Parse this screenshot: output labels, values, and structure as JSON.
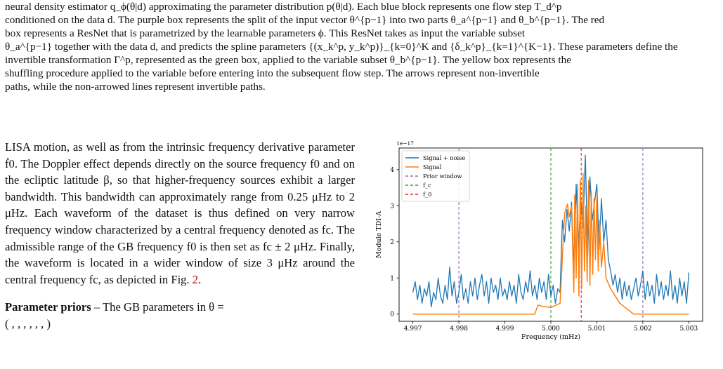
{
  "caption_lines": [
    "neural density estimator q_ϕ(θ|d) approximating the parameter distribution p(θ|d). Each blue block represents one flow step T_d^p",
    "conditioned on the data d. The purple box represents the split of the input vector θ^{p−1} into two parts θ_a^{p−1} and θ_b^{p−1}. The red",
    "box represents a ResNet that is parametrized by the learnable parameters ϕ. This ResNet takes as input the variable subset",
    "θ_a^{p−1} together with the data d, and predicts the spline parameters {(x_k^p, y_k^p)}_{k=0}^K and {δ_k^p}_{k=1}^{K−1}. These parameters define the",
    "invertible transformation Γ^p, represented as the green box, applied to the variable subset θ_b^{p−1}. The yellow box represents the",
    "shuffling procedure applied to the variable before entering into the subsequent flow step. The arrows represent non-invertible",
    "paths, while the non-arrowed lines represent invertible paths."
  ],
  "body": {
    "paragraph1": "LISA motion, as well as from the intrinsic frequency derivative parameter ḟ0. The Doppler effect depends directly on the source frequency f0 and on the ecliptic latitude β, so that higher-frequency sources exhibit a larger bandwidth. This bandwidth can approximately range from 0.25 μHz to 2 μHz. Each waveform of the dataset is thus defined on very narrow frequency window characterized by a central frequency denoted as fc. The admissible range of the GB frequency f0 is then set as fc ± 2 μHz. Finally, the waveform is located in a wider window of size 3 μHz around the central frequency fc, as depicted in Fig.",
    "fig_ref": "2",
    "paragraph1_end": ".",
    "paragraph2_bold": "Parameter priors",
    "paragraph2_text": " – The GB parameters in θ =",
    "paragraph2_cont": "( , , , , , , )"
  },
  "chart_data": {
    "type": "line",
    "xlabel": "Frequency (mHz)",
    "ylabel": "Module TDI-A",
    "scale_label": "1e−17",
    "xlim": [
      4.9967,
      5.0033
    ],
    "ylim": [
      -0.2,
      4.6
    ],
    "xticks": [
      "4.997",
      "4.998",
      "4.999",
      "5.000",
      "5.001",
      "5.002",
      "5.003"
    ],
    "xtick_values": [
      4.997,
      4.998,
      4.999,
      5.0,
      5.001,
      5.002,
      5.003
    ],
    "yticks": [
      "0",
      "1",
      "2",
      "3",
      "4"
    ],
    "ytick_values": [
      0,
      1,
      2,
      3,
      4
    ],
    "legend": [
      "Signal + noise",
      "Signal",
      "Prior window",
      "f_c",
      "f_0"
    ],
    "colors": {
      "noise": "#1f77b4",
      "signal": "#ff7f0e",
      "prior": "#9467bd",
      "fc": "#2ca02c",
      "f0": "#d62728"
    },
    "vlines": {
      "prior": [
        4.998,
        5.002
      ],
      "fc": 5.0,
      "f0": 5.00066
    },
    "signal_xy": [
      [
        4.997,
        0.0
      ],
      [
        4.99965,
        0.0
      ],
      [
        4.99972,
        0.25
      ],
      [
        4.9998,
        0.22
      ],
      [
        4.9999,
        0.2
      ],
      [
        5.0,
        0.18
      ],
      [
        5.0002,
        0.3
      ],
      [
        5.0003,
        2.8
      ],
      [
        5.00036,
        3.05
      ],
      [
        5.0004,
        2.7
      ],
      [
        5.00045,
        3.0
      ],
      [
        5.0005,
        0.6
      ],
      [
        5.00052,
        3.3
      ],
      [
        5.00055,
        1.0
      ],
      [
        5.00058,
        3.6
      ],
      [
        5.00061,
        0.5
      ],
      [
        5.00064,
        3.7
      ],
      [
        5.00067,
        0.7
      ],
      [
        5.0007,
        3.9
      ],
      [
        5.00073,
        1.2
      ],
      [
        5.00076,
        3.0
      ],
      [
        5.00079,
        0.9
      ],
      [
        5.00082,
        3.7
      ],
      [
        5.00085,
        0.8
      ],
      [
        5.00088,
        3.4
      ],
      [
        5.00091,
        1.1
      ],
      [
        5.00094,
        3.2
      ],
      [
        5.00097,
        1.5
      ],
      [
        5.001,
        3.3
      ],
      [
        5.00103,
        1.2
      ],
      [
        5.00106,
        2.6
      ],
      [
        5.0011,
        1.3
      ],
      [
        5.00115,
        2.0
      ],
      [
        5.0012,
        1.0
      ],
      [
        5.0013,
        0.7
      ],
      [
        5.0015,
        0.3
      ],
      [
        5.0017,
        0.1
      ],
      [
        5.0018,
        0.0
      ],
      [
        5.003,
        0.0
      ]
    ],
    "noise_xy": [
      [
        4.997,
        0.6
      ],
      [
        4.99705,
        0.9
      ],
      [
        4.9971,
        0.4
      ],
      [
        4.99715,
        0.8
      ],
      [
        4.9972,
        0.3
      ],
      [
        4.99725,
        0.7
      ],
      [
        4.9973,
        0.5
      ],
      [
        4.99735,
        0.9
      ],
      [
        4.9974,
        0.2
      ],
      [
        4.99745,
        0.6
      ],
      [
        4.9975,
        0.4
      ],
      [
        4.99755,
        1.0
      ],
      [
        4.9976,
        0.5
      ],
      [
        4.99765,
        0.3
      ],
      [
        4.9977,
        0.8
      ],
      [
        4.99775,
        0.4
      ],
      [
        4.9978,
        1.3
      ],
      [
        4.99785,
        0.5
      ],
      [
        4.9979,
        0.9
      ],
      [
        4.99795,
        0.3
      ],
      [
        4.998,
        0.6
      ],
      [
        4.99805,
        1.1
      ],
      [
        4.9981,
        0.4
      ],
      [
        4.99815,
        0.7
      ],
      [
        4.9982,
        0.3
      ],
      [
        4.99825,
        0.9
      ],
      [
        4.9983,
        0.5
      ],
      [
        4.99835,
        1.0
      ],
      [
        4.9984,
        0.4
      ],
      [
        4.99845,
        0.8
      ],
      [
        4.9985,
        1.1
      ],
      [
        4.99855,
        0.5
      ],
      [
        4.9986,
        0.9
      ],
      [
        4.99865,
        0.3
      ],
      [
        4.9987,
        1.0
      ],
      [
        4.99875,
        0.6
      ],
      [
        4.9988,
        0.8
      ],
      [
        4.99885,
        0.4
      ],
      [
        4.9989,
        1.0
      ],
      [
        4.99895,
        0.5
      ],
      [
        4.999,
        0.7
      ],
      [
        4.99905,
        0.4
      ],
      [
        4.9991,
        0.9
      ],
      [
        4.99915,
        0.5
      ],
      [
        4.9992,
        0.8
      ],
      [
        4.99925,
        0.3
      ],
      [
        4.9993,
        1.1
      ],
      [
        4.99935,
        0.6
      ],
      [
        4.9994,
        0.4
      ],
      [
        4.99945,
        0.9
      ],
      [
        4.9995,
        0.6
      ],
      [
        4.99955,
        1.2
      ],
      [
        4.9996,
        0.5
      ],
      [
        4.99965,
        0.8
      ],
      [
        4.9997,
        0.4
      ],
      [
        4.99975,
        1.0
      ],
      [
        4.9998,
        0.6
      ],
      [
        4.99985,
        0.9
      ],
      [
        4.9999,
        0.4
      ],
      [
        4.99995,
        1.1
      ],
      [
        5.0,
        0.5
      ],
      [
        5.00005,
        0.8
      ],
      [
        5.0001,
        0.3
      ],
      [
        5.00015,
        0.7
      ],
      [
        5.0002,
        0.6
      ],
      [
        5.00025,
        2.6
      ],
      [
        5.0003,
        2.0
      ],
      [
        5.00035,
        2.9
      ],
      [
        5.0004,
        2.3
      ],
      [
        5.00045,
        3.1
      ],
      [
        5.0005,
        1.2
      ],
      [
        5.00055,
        3.6
      ],
      [
        5.0006,
        1.8
      ],
      [
        5.00065,
        3.2
      ],
      [
        5.0007,
        2.4
      ],
      [
        5.00075,
        4.4
      ],
      [
        5.0008,
        1.6
      ],
      [
        5.00085,
        3.8
      ],
      [
        5.0009,
        2.6
      ],
      [
        5.00095,
        3.1
      ],
      [
        5.001,
        3.6
      ],
      [
        5.00105,
        1.8
      ],
      [
        5.0011,
        3.2
      ],
      [
        5.00115,
        2.0
      ],
      [
        5.0012,
        2.6
      ],
      [
        5.00125,
        1.5
      ],
      [
        5.0013,
        1.2
      ],
      [
        5.00135,
        0.8
      ],
      [
        5.0014,
        1.1
      ],
      [
        5.00145,
        0.6
      ],
      [
        5.0015,
        1.0
      ],
      [
        5.00155,
        0.4
      ],
      [
        5.0016,
        0.9
      ],
      [
        5.00165,
        0.5
      ],
      [
        5.0017,
        0.8
      ],
      [
        5.00175,
        0.4
      ],
      [
        5.0018,
        0.7
      ],
      [
        5.00185,
        1.0
      ],
      [
        5.0019,
        0.5
      ],
      [
        5.00195,
        0.8
      ],
      [
        5.002,
        1.2
      ],
      [
        5.00205,
        0.4
      ],
      [
        5.0021,
        0.9
      ],
      [
        5.00215,
        0.5
      ],
      [
        5.0022,
        0.8
      ],
      [
        5.00225,
        0.3
      ],
      [
        5.0023,
        1.1
      ],
      [
        5.00235,
        0.5
      ],
      [
        5.0024,
        0.9
      ],
      [
        5.00245,
        0.4
      ],
      [
        5.0025,
        0.8
      ],
      [
        5.00255,
        0.5
      ],
      [
        5.0026,
        1.2
      ],
      [
        5.00265,
        0.4
      ],
      [
        5.0027,
        0.8
      ],
      [
        5.00275,
        0.3
      ],
      [
        5.0028,
        1.0
      ],
      [
        5.00285,
        0.5
      ],
      [
        5.0029,
        0.9
      ],
      [
        5.00295,
        0.3
      ],
      [
        5.003,
        1.15
      ]
    ]
  }
}
